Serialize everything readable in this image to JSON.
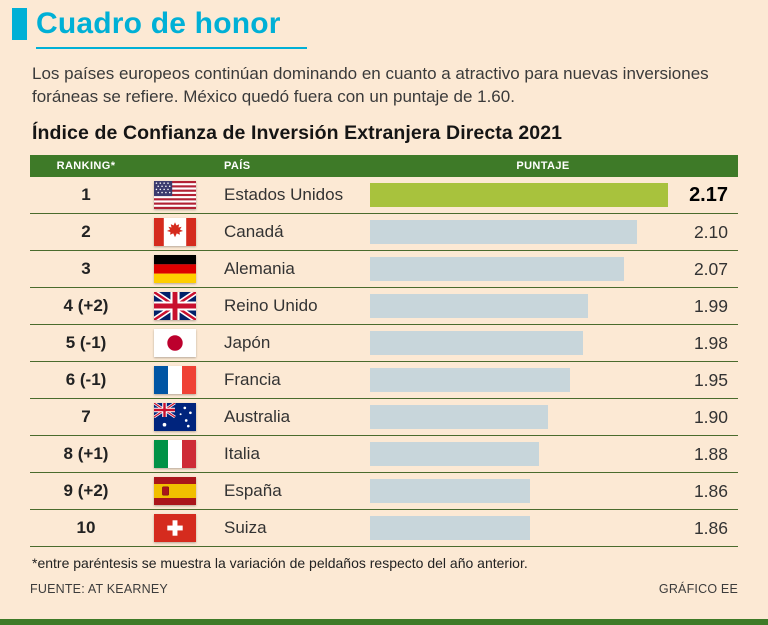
{
  "page": {
    "title": "Cuadro de honor",
    "intro": "Los países europeos continúan dominando en cuanto a atractivo para nuevas inversiones foráneas se refiere. México quedó fuera con un puntaje de 1.60.",
    "chart_title": "Índice de Confianza de Inversión Extranjera Directa 2021",
    "footnote": "*entre paréntesis se muestra la variación de peldaños respecto del año anterior.",
    "source": "FUENTE: AT KEARNEY",
    "credit": "GRÁFICO EE"
  },
  "table": {
    "headers": [
      "RANKING*",
      "PAÍS",
      "PUNTAJE"
    ]
  },
  "chart_data": {
    "type": "bar",
    "title": "Índice de Confianza de Inversión Extranjera Directa 2021",
    "categories": [
      "Estados Unidos",
      "Canadá",
      "Alemania",
      "Reino Unido",
      "Japón",
      "Francia",
      "Australia",
      "Italia",
      "España",
      "Suiza"
    ],
    "rankings": [
      "1",
      "2",
      "3",
      "4 (+2)",
      "5 (-1)",
      "6 (-1)",
      "7",
      "8 (+1)",
      "9 (+2)",
      "10"
    ],
    "values": [
      2.17,
      2.1,
      2.07,
      1.99,
      1.98,
      1.95,
      1.9,
      1.88,
      1.86,
      1.86
    ],
    "values_display": [
      "2.17",
      "2.10",
      "2.07",
      "1.99",
      "1.98",
      "1.95",
      "1.90",
      "1.88",
      "1.86",
      "1.86"
    ],
    "flags": [
      "us",
      "ca",
      "de",
      "gb",
      "jp",
      "fr",
      "au",
      "it",
      "es",
      "ch"
    ],
    "flag_names": [
      "estados-unidos",
      "canada",
      "alemania",
      "reino-unido",
      "japon",
      "francia",
      "australia",
      "italia",
      "espana",
      "suiza"
    ],
    "highlight_index": 0,
    "bar_baseline": 1.5,
    "xlim": [
      1.5,
      2.17
    ],
    "legend": "none",
    "colors": {
      "accent": "#00b0d6",
      "header_bg": "#3e7a28",
      "highlight_bar": "#a8c23d",
      "bar": "#c8d6db",
      "background": "#fce9d4"
    }
  }
}
